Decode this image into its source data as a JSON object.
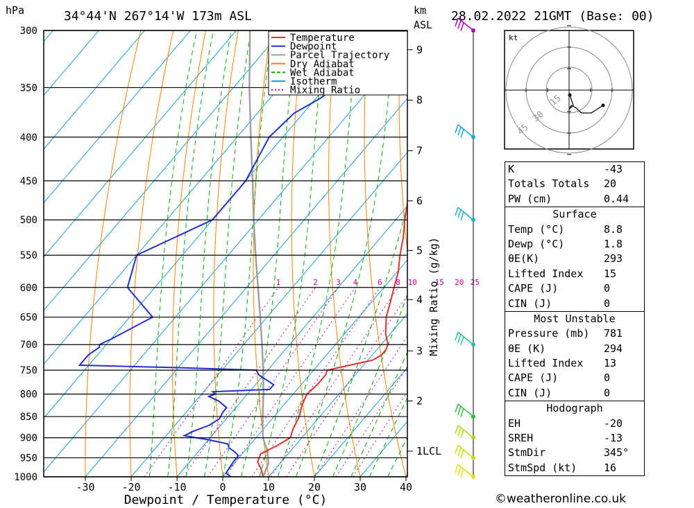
{
  "header": {
    "location": "34°44'N  267°14'W  173m  ASL",
    "datetime": "28.02.2022  21GMT  (Base: 00)",
    "pressure_unit": "hPa",
    "height_unit": "km",
    "height_unit2": "ASL"
  },
  "chart_data": {
    "type": "line",
    "title": "34°44'N  267°14'W  173m  ASL",
    "xlabel": "Dewpoint / Temperature (°C)",
    "ylabel": "hPa",
    "right_label": "Mixing Ratio (g/kg)",
    "y_scale": "log",
    "ylim": [
      1000,
      300
    ],
    "xlim": [
      -40,
      40
    ],
    "x_ticks": [
      -30,
      -20,
      -10,
      0,
      10,
      20,
      30,
      40
    ],
    "pressure_levels": [
      300,
      350,
      400,
      450,
      500,
      550,
      600,
      650,
      700,
      750,
      800,
      850,
      900,
      950,
      1000
    ],
    "height_ticks_km": [
      {
        "p": 933,
        "label": "1LCL"
      },
      {
        "p": 815,
        "label": "2"
      },
      {
        "p": 712,
        "label": "3"
      },
      {
        "p": 620,
        "label": "4"
      },
      {
        "p": 543,
        "label": "5"
      },
      {
        "p": 475,
        "label": "6"
      },
      {
        "p": 415,
        "label": "7"
      },
      {
        "p": 362,
        "label": "8"
      },
      {
        "p": 316,
        "label": "9"
      }
    ],
    "mixing_ratio_labels": [
      "1",
      "2",
      "3",
      "4",
      "6",
      "8",
      "10",
      "15",
      "20",
      "25"
    ],
    "series": [
      {
        "name": "Temperature",
        "color": "#e03030",
        "points": [
          [
            1000,
            8.8
          ],
          [
            980,
            7
          ],
          [
            960,
            4.8
          ],
          [
            940,
            4
          ],
          [
            920,
            6
          ],
          [
            900,
            7.5
          ],
          [
            880,
            6.5
          ],
          [
            850,
            5.5
          ],
          [
            825,
            4
          ],
          [
            800,
            3
          ],
          [
            780,
            3.5
          ],
          [
            760,
            3.5
          ],
          [
            750,
            3
          ],
          [
            740,
            7
          ],
          [
            730,
            11
          ],
          [
            720,
            12
          ],
          [
            710,
            12
          ],
          [
            700,
            11.5
          ],
          [
            680,
            9
          ],
          [
            650,
            6
          ],
          [
            620,
            3.8
          ],
          [
            600,
            2.2
          ],
          [
            575,
            0.2
          ],
          [
            550,
            -2.5
          ],
          [
            525,
            -5
          ],
          [
            500,
            -8
          ],
          [
            470,
            -11.5
          ],
          [
            450,
            -14.5
          ],
          [
            425,
            -17.5
          ],
          [
            400,
            -20.5
          ],
          [
            380,
            -23.5
          ],
          [
            360,
            -27.5
          ],
          [
            345,
            -30.5
          ],
          [
            330,
            -33
          ],
          [
            315,
            -35
          ],
          [
            300,
            -38
          ]
        ]
      },
      {
        "name": "Dewpoint",
        "color": "#2030d0",
        "points": [
          [
            1000,
            1.8
          ],
          [
            990,
            0
          ],
          [
            960,
            -0.5
          ],
          [
            945,
            -0.5
          ],
          [
            935,
            -2
          ],
          [
            925,
            -4
          ],
          [
            915,
            -5
          ],
          [
            905,
            -10
          ],
          [
            895,
            -16
          ],
          [
            885,
            -15
          ],
          [
            870,
            -12.5
          ],
          [
            855,
            -11.5
          ],
          [
            840,
            -12
          ],
          [
            830,
            -12
          ],
          [
            815,
            -15
          ],
          [
            810,
            -16.5
          ],
          [
            805,
            -18
          ],
          [
            800,
            -17
          ],
          [
            795,
            -18
          ],
          [
            790,
            -6
          ],
          [
            780,
            -6
          ],
          [
            760,
            -11
          ],
          [
            750,
            -12.5
          ],
          [
            745,
            -30
          ],
          [
            740,
            -52
          ],
          [
            720,
            -52
          ],
          [
            705,
            -51
          ],
          [
            700,
            -51.5
          ],
          [
            690,
            -50
          ],
          [
            650,
            -45
          ],
          [
            600,
            -56
          ],
          [
            550,
            -60
          ],
          [
            500,
            -50
          ],
          [
            450,
            -50
          ],
          [
            400,
            -53
          ],
          [
            375,
            -52
          ],
          [
            360,
            -49
          ],
          [
            350,
            -48
          ],
          [
            330,
            -50
          ],
          [
            310,
            -49
          ],
          [
            300,
            -49
          ]
        ]
      },
      {
        "name": "Parcel Trajectory",
        "color": "#a0a0a0",
        "points": [
          [
            1000,
            8.8
          ],
          [
            965,
            7.5
          ],
          [
            933,
            5
          ],
          [
            900,
            1.5
          ],
          [
            850,
            -2.5
          ],
          [
            800,
            -6.5
          ],
          [
            750,
            -11
          ],
          [
            700,
            -16
          ],
          [
            650,
            -21.5
          ],
          [
            600,
            -27.5
          ],
          [
            550,
            -34
          ],
          [
            500,
            -41
          ],
          [
            450,
            -48.5
          ],
          [
            400,
            -57
          ],
          [
            350,
            -66.5
          ],
          [
            300,
            -77
          ]
        ]
      },
      {
        "name": "Dry Adiabat",
        "color": "#ff7f00"
      },
      {
        "name": "Wet Adiabat",
        "color": "#00b000"
      },
      {
        "name": "Isotherm",
        "color": "#1ca0e0"
      },
      {
        "name": "Mixing Ratio",
        "color": "#cc0099"
      }
    ],
    "legend_position": "top-right",
    "winds": [
      {
        "p": 1000,
        "color": "#e8e000"
      },
      {
        "p": 950,
        "color": "#c8e000"
      },
      {
        "p": 900,
        "color": "#a0e000"
      },
      {
        "p": 850,
        "color": "#30c030"
      },
      {
        "p": 700,
        "color": "#20c0a0"
      },
      {
        "p": 500,
        "color": "#20b0d0"
      },
      {
        "p": 400,
        "color": "#20a0e0"
      },
      {
        "p": 300,
        "color": "#b000c0"
      }
    ]
  },
  "hodograph": {
    "unit": "kt",
    "ring_labels": [
      "15",
      "30",
      "45"
    ]
  },
  "indices": [
    {
      "label": "K",
      "value": "-43"
    },
    {
      "label": "Totals Totals",
      "value": "20"
    },
    {
      "label": "PW (cm)",
      "value": "0.44"
    }
  ],
  "surface": {
    "title": "Surface",
    "rows": [
      {
        "label": "Temp (°C)",
        "value": "8.8"
      },
      {
        "label": "Dewp (°C)",
        "value": "1.8"
      },
      {
        "label": "θE(K)",
        "value": "293"
      },
      {
        "label": "Lifted Index",
        "value": "15"
      },
      {
        "label": "CAPE (J)",
        "value": "0"
      },
      {
        "label": "CIN (J)",
        "value": "0"
      }
    ]
  },
  "most_unstable": {
    "title": "Most Unstable",
    "rows": [
      {
        "label": "Pressure (mb)",
        "value": "781"
      },
      {
        "label": "θE (K)",
        "value": "294"
      },
      {
        "label": "Lifted Index",
        "value": "13"
      },
      {
        "label": "CAPE (J)",
        "value": "0"
      },
      {
        "label": "CIN (J)",
        "value": "0"
      }
    ]
  },
  "hodograph_table": {
    "title": "Hodograph",
    "rows": [
      {
        "label": "EH",
        "value": "-20"
      },
      {
        "label": "SREH",
        "value": "-13"
      },
      {
        "label": "StmDir",
        "value": "345°"
      },
      {
        "label": "StmSpd (kt)",
        "value": "16"
      }
    ]
  },
  "copyright": "©weatheronline.co.uk"
}
